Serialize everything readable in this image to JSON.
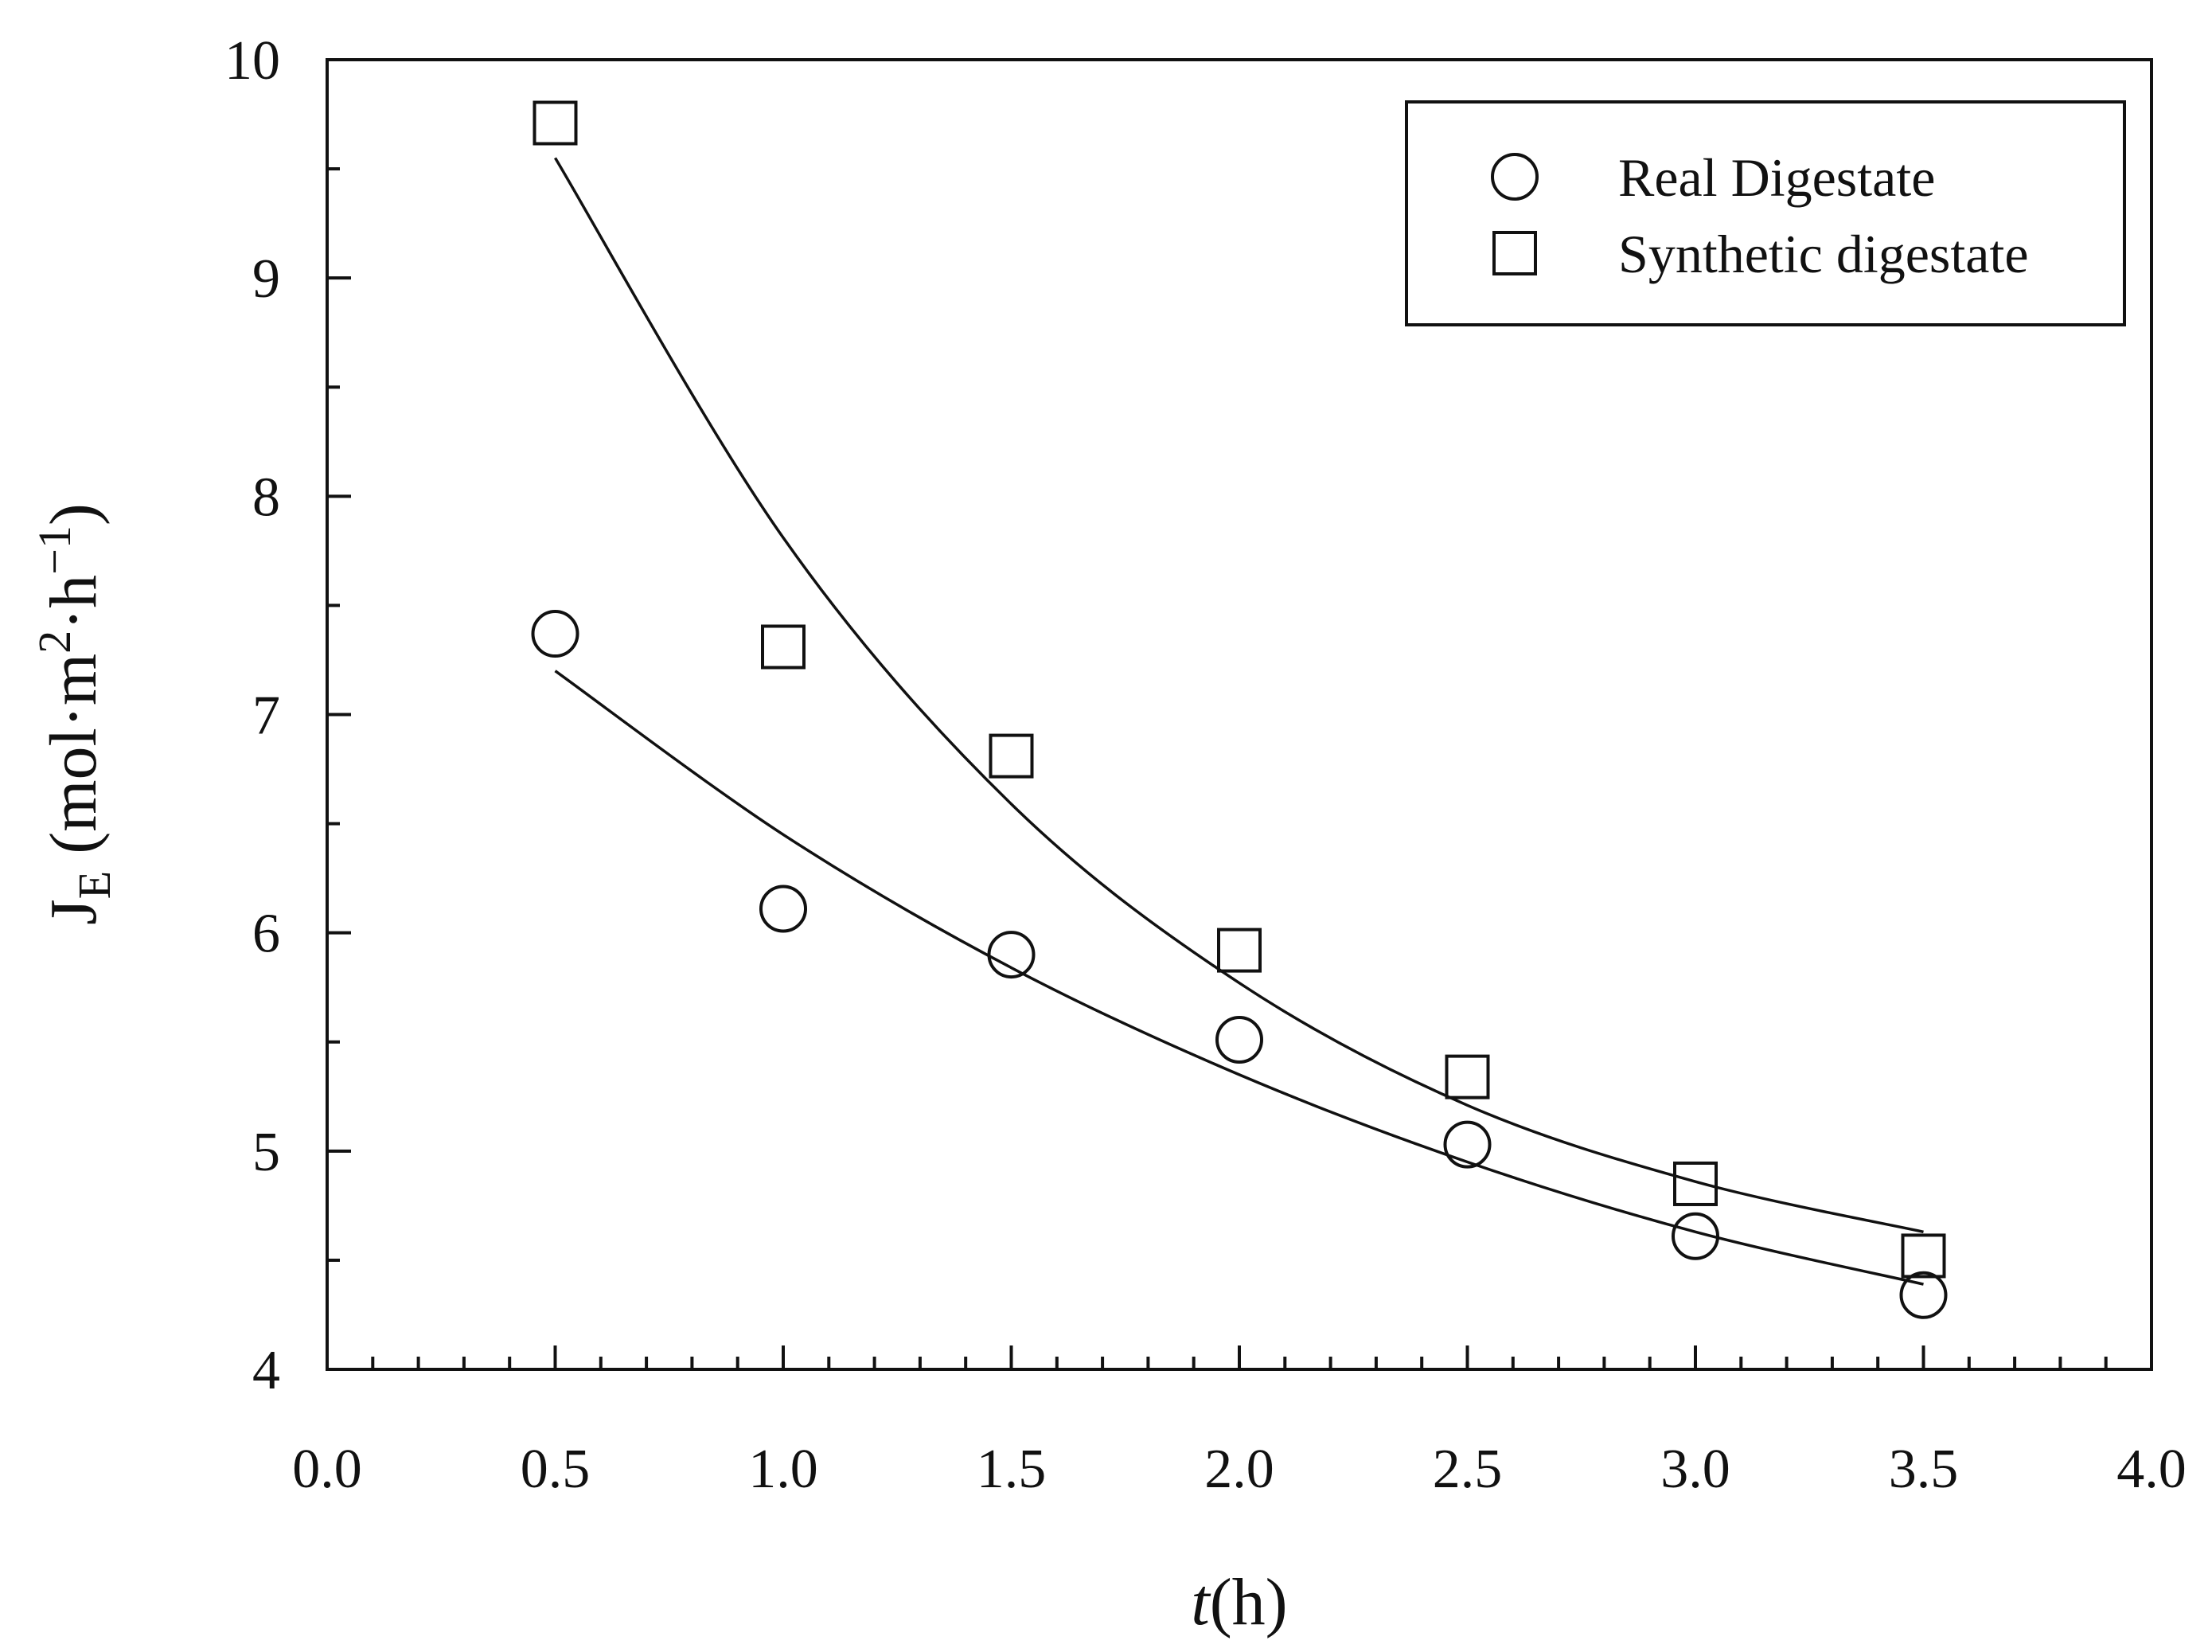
{
  "chart_data": {
    "type": "scatter",
    "title": "",
    "xlabel": {
      "italic": "t",
      "rest": "(h)"
    },
    "ylabel": {
      "main": "J",
      "subscript": "E",
      "units_pre": " (mol·m",
      "units_sup1": "2",
      "units_mid": "·h",
      "units_sup2": "−1",
      "units_post": ")"
    },
    "xlim": [
      0.0,
      4.0
    ],
    "ylim": [
      4,
      10
    ],
    "x_ticks": [
      "0.0",
      "0.5",
      "1.0",
      "1.5",
      "2.0",
      "2.5",
      "3.0",
      "3.5",
      "4.0"
    ],
    "y_ticks": [
      "4",
      "5",
      "6",
      "7",
      "8",
      "9",
      "10"
    ],
    "grid": false,
    "legend_position": "top-right",
    "series": [
      {
        "name": "Real Digestate",
        "marker": "circle",
        "x": [
          0.5,
          1.0,
          1.5,
          2.0,
          2.5,
          3.0,
          3.5
        ],
        "y": [
          7.37,
          6.11,
          5.9,
          5.51,
          5.03,
          4.61,
          4.34
        ],
        "fit_curve": {
          "x": [
            0.5,
            1.0,
            1.5,
            2.0,
            2.5,
            3.0,
            3.5
          ],
          "y": [
            7.2,
            6.45,
            5.84,
            5.35,
            4.95,
            4.63,
            4.39
          ]
        }
      },
      {
        "name": "Synthetic digestate",
        "marker": "square",
        "x": [
          0.5,
          1.0,
          1.5,
          2.0,
          2.5,
          3.0,
          3.5
        ],
        "y": [
          9.71,
          7.31,
          6.81,
          5.92,
          5.34,
          4.85,
          4.52
        ],
        "fit_curve": {
          "x": [
            0.5,
            1.0,
            1.5,
            2.0,
            2.5,
            3.0,
            3.5
          ],
          "y": [
            9.55,
            7.81,
            6.59,
            5.77,
            5.21,
            4.86,
            4.63
          ]
        }
      }
    ]
  }
}
